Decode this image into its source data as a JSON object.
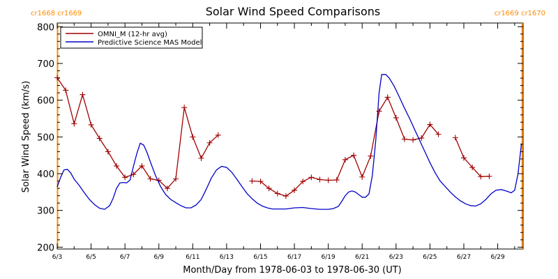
{
  "chart_data": {
    "type": "line",
    "title": "Solar Wind Speed Comparisons",
    "xlabel": "Month/Day from 1978-06-03 to 1978-06-30 (UT)",
    "ylabel": "Solar Wind Speed (km/s)",
    "x_unit": "day of June 1978",
    "xlim": [
      3.0,
      30.5
    ],
    "ylim": [
      195,
      810
    ],
    "grid": false,
    "legend_position": "top-left",
    "x_ticks": [
      3,
      5,
      7,
      9,
      11,
      13,
      15,
      17,
      19,
      21,
      23,
      25,
      27,
      29
    ],
    "x_tick_labels": [
      "6/3",
      "6/5",
      "6/7",
      "6/9",
      "6/11",
      "6/13",
      "6/15",
      "6/17",
      "6/19",
      "6/21",
      "6/23",
      "6/25",
      "6/27",
      "6/29"
    ],
    "y_ticks": [
      200,
      300,
      400,
      500,
      600,
      700,
      800
    ],
    "y_tick_labels": [
      "200",
      "300",
      "400",
      "500",
      "600",
      "700",
      "800"
    ],
    "carrington_markers": [
      {
        "x": 3.02,
        "label": "cr1668 cr1669",
        "label_side": "left"
      },
      {
        "x": 30.45,
        "label": "cr1669 cr1670",
        "label_side": "right"
      }
    ],
    "series": [
      {
        "name": "OMNI_M (12-hr avg)",
        "color": "#a00000",
        "marker": "plus",
        "segments": [
          [
            [
              3.0,
              661
            ],
            [
              3.5,
              627
            ],
            [
              4.0,
              536
            ],
            [
              4.5,
              615
            ],
            [
              5.0,
              533
            ],
            [
              5.5,
              496
            ],
            [
              6.0,
              460
            ],
            [
              6.5,
              421
            ],
            [
              7.0,
              390
            ],
            [
              7.5,
              398
            ],
            [
              8.0,
              421
            ],
            [
              8.5,
              386
            ],
            [
              9.0,
              382
            ],
            [
              9.5,
              360
            ],
            [
              10.0,
              386
            ],
            [
              10.5,
              580
            ],
            [
              11.0,
              500
            ],
            [
              11.5,
              442
            ],
            [
              12.0,
              484
            ],
            [
              12.5,
              505
            ]
          ],
          [
            [
              14.5,
              380
            ],
            [
              15.0,
              379
            ],
            [
              15.5,
              360
            ],
            [
              16.0,
              346
            ],
            [
              16.5,
              339
            ],
            [
              17.0,
              355
            ],
            [
              17.5,
              379
            ],
            [
              18.0,
              390
            ],
            [
              18.5,
              384
            ],
            [
              19.0,
              382
            ],
            [
              19.5,
              383
            ],
            [
              20.0,
              438
            ],
            [
              20.5,
              450
            ],
            [
              21.0,
              391
            ],
            [
              21.5,
              448
            ],
            [
              22.0,
              570
            ],
            [
              22.5,
              608
            ],
            [
              23.0,
              552
            ],
            [
              23.5,
              494
            ],
            [
              24.0,
              492
            ],
            [
              24.5,
              497
            ],
            [
              25.0,
              534
            ],
            [
              25.5,
              507
            ]
          ],
          [
            [
              26.5,
              498
            ],
            [
              27.0,
              443
            ],
            [
              27.5,
              417
            ],
            [
              28.0,
              392
            ],
            [
              28.5,
              393
            ]
          ]
        ]
      },
      {
        "name": "Predictive Science MAS Model",
        "color": "#0000c8",
        "marker": "none",
        "segments": [
          [
            [
              3.0,
              364
            ],
            [
              3.2,
              390
            ],
            [
              3.4,
              410
            ],
            [
              3.6,
              412
            ],
            [
              3.8,
              402
            ],
            [
              4.0,
              385
            ],
            [
              4.3,
              368
            ],
            [
              4.6,
              348
            ],
            [
              4.9,
              330
            ],
            [
              5.2,
              316
            ],
            [
              5.5,
              306
            ],
            [
              5.8,
              303
            ],
            [
              6.1,
              313
            ],
            [
              6.3,
              333
            ],
            [
              6.5,
              360
            ],
            [
              6.7,
              375
            ],
            [
              6.9,
              376
            ],
            [
              7.1,
              375
            ],
            [
              7.3,
              383
            ],
            [
              7.5,
              420
            ],
            [
              7.7,
              455
            ],
            [
              7.9,
              483
            ],
            [
              8.1,
              478
            ],
            [
              8.3,
              458
            ],
            [
              8.5,
              432
            ],
            [
              8.8,
              395
            ],
            [
              9.1,
              365
            ],
            [
              9.4,
              343
            ],
            [
              9.7,
              330
            ],
            [
              10.0,
              321
            ],
            [
              10.3,
              313
            ],
            [
              10.6,
              307
            ],
            [
              10.9,
              307
            ],
            [
              11.2,
              315
            ],
            [
              11.5,
              330
            ],
            [
              11.8,
              358
            ],
            [
              12.1,
              388
            ],
            [
              12.4,
              410
            ],
            [
              12.7,
              420
            ],
            [
              13.0,
              417
            ],
            [
              13.3,
              404
            ],
            [
              13.6,
              385
            ],
            [
              13.9,
              365
            ],
            [
              14.2,
              346
            ],
            [
              14.5,
              332
            ],
            [
              14.8,
              320
            ],
            [
              15.1,
              312
            ],
            [
              15.4,
              307
            ],
            [
              15.7,
              304
            ],
            [
              16.0,
              304
            ],
            [
              16.5,
              304
            ],
            [
              17.0,
              307
            ],
            [
              17.5,
              308
            ],
            [
              18.0,
              305
            ],
            [
              18.5,
              303
            ],
            [
              19.0,
              303
            ],
            [
              19.3,
              305
            ],
            [
              19.6,
              311
            ],
            [
              19.8,
              325
            ],
            [
              20.0,
              340
            ],
            [
              20.2,
              350
            ],
            [
              20.4,
              353
            ],
            [
              20.6,
              350
            ],
            [
              20.8,
              343
            ],
            [
              21.0,
              336
            ],
            [
              21.2,
              336
            ],
            [
              21.4,
              345
            ],
            [
              21.6,
              395
            ],
            [
              21.8,
              490
            ],
            [
              22.0,
              620
            ],
            [
              22.15,
              670
            ],
            [
              22.4,
              670
            ],
            [
              22.6,
              660
            ],
            [
              22.9,
              637
            ],
            [
              23.2,
              608
            ],
            [
              23.5,
              578
            ],
            [
              23.8,
              550
            ],
            [
              24.1,
              520
            ],
            [
              24.4,
              490
            ],
            [
              24.7,
              460
            ],
            [
              25.0,
              430
            ],
            [
              25.3,
              403
            ],
            [
              25.6,
              380
            ],
            [
              25.9,
              365
            ],
            [
              26.2,
              350
            ],
            [
              26.5,
              337
            ],
            [
              26.8,
              326
            ],
            [
              27.1,
              318
            ],
            [
              27.4,
              313
            ],
            [
              27.7,
              312
            ],
            [
              28.0,
              318
            ],
            [
              28.3,
              330
            ],
            [
              28.6,
              345
            ],
            [
              28.9,
              355
            ],
            [
              29.2,
              357
            ],
            [
              29.5,
              353
            ],
            [
              29.8,
              348
            ],
            [
              30.0,
              355
            ],
            [
              30.2,
              400
            ],
            [
              30.4,
              482
            ]
          ]
        ]
      }
    ]
  }
}
